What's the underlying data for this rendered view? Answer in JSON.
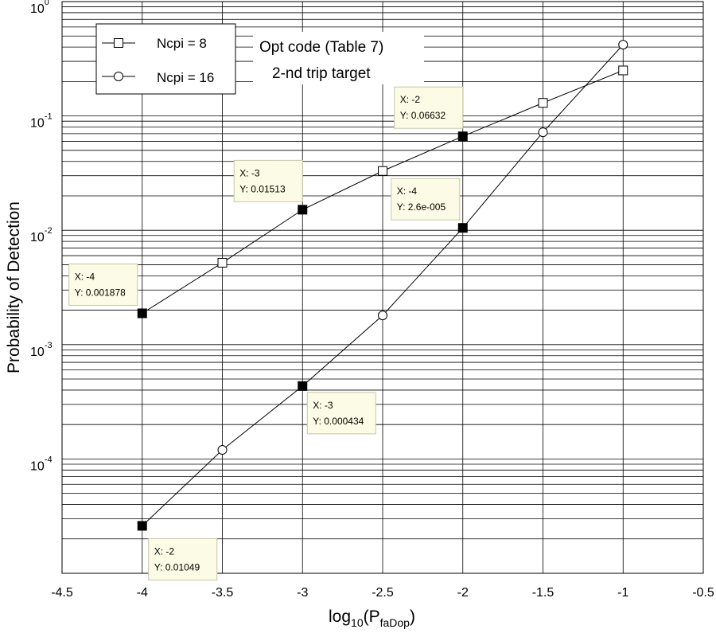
{
  "chart_data": {
    "type": "line",
    "xlabel_base": "log",
    "xlabel_sub1": "10",
    "xlabel_mid": "(P",
    "xlabel_sub2": "faDop",
    "xlabel_end": ")",
    "ylabel": "Probability of Detection",
    "xlim": [
      -4.5,
      -0.5
    ],
    "ylim_log10": [
      -5,
      0
    ],
    "y_scale": "log",
    "grid": true,
    "x_ticks": [
      {
        "value": -4.5,
        "label": "-4.5"
      },
      {
        "value": -4,
        "label": "-4"
      },
      {
        "value": -3.5,
        "label": "-3.5"
      },
      {
        "value": -3,
        "label": "-3"
      },
      {
        "value": -2.5,
        "label": "-2.5"
      },
      {
        "value": -2,
        "label": "-2"
      },
      {
        "value": -1.5,
        "label": "-1.5"
      },
      {
        "value": -1,
        "label": "-1"
      },
      {
        "value": -0.5,
        "label": "-0.5"
      }
    ],
    "y_ticks": [
      {
        "exp": 0,
        "base": "10",
        "sup": "0"
      },
      {
        "exp": -1,
        "base": "10",
        "sup": "-1"
      },
      {
        "exp": -2,
        "base": "10",
        "sup": "-2"
      },
      {
        "exp": -3,
        "base": "10",
        "sup": "-3"
      },
      {
        "exp": -4,
        "base": "10",
        "sup": "-4"
      }
    ],
    "series": [
      {
        "name": "Ncpi = 8",
        "marker": "square",
        "x": [
          -4,
          -3.5,
          -3,
          -2.5,
          -2,
          -1.5,
          -1
        ],
        "y": [
          0.001878,
          0.0052,
          0.01513,
          0.033,
          0.06632,
          0.13,
          0.25
        ]
      },
      {
        "name": "Ncpi = 16",
        "marker": "circle",
        "x": [
          -4,
          -3.5,
          -3,
          -2.5,
          -2,
          -1.5,
          -1
        ],
        "y": [
          2.6e-05,
          0.00012,
          0.000434,
          0.0018,
          0.01049,
          0.072,
          0.42
        ]
      }
    ],
    "highlighted_points": [
      {
        "series": 0,
        "x": -4,
        "y": 0.001878
      },
      {
        "series": 0,
        "x": -3,
        "y": 0.01513
      },
      {
        "series": 0,
        "x": -2,
        "y": 0.06632
      },
      {
        "series": 1,
        "x": -4,
        "y": 2.6e-05
      },
      {
        "series": 1,
        "x": -3,
        "y": 0.000434
      },
      {
        "series": 1,
        "x": -2,
        "y": 0.01049
      }
    ],
    "datatips": [
      {
        "x_text": "X: -4",
        "y_text": "Y: 0.001878"
      },
      {
        "x_text": "X: -3",
        "y_text": "Y: 0.01513"
      },
      {
        "x_text": "X: -2",
        "y_text": "Y: 0.06632"
      },
      {
        "x_text": "X: -2",
        "y_text": "Y: 0.01049"
      },
      {
        "x_text": "X: -3",
        "y_text": "Y: 0.000434"
      },
      {
        "x_text": "X: -4",
        "y_text": "Y: 2.6e-005"
      }
    ],
    "legend_placement": "top-left",
    "annotation": {
      "line1": "Opt code (Table 7)",
      "line2": "2-nd trip target"
    }
  }
}
